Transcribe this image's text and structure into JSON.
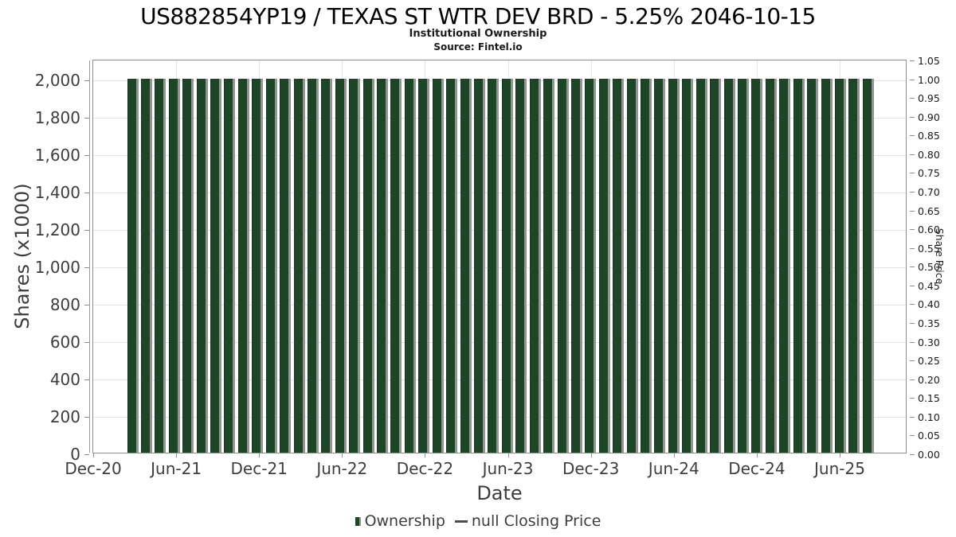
{
  "header": {
    "title": "US882854YP19 / TEXAS ST WTR DEV BRD - 5.25% 2046-10-15",
    "subtitle": "Institutional Ownership",
    "source": "Source: Fintel.io"
  },
  "colors": {
    "bar_fill": "#1d4627",
    "bar_edge": "#949494",
    "grid": "#e4e4e4",
    "axis_line": "#8f8f8f",
    "line_marker": "#4d4d4d"
  },
  "chart_data": {
    "type": "bar",
    "title": "US882854YP19 / TEXAS ST WTR DEV BRD - 5.25% 2046-10-15",
    "subtitle": "Institutional Ownership",
    "source": "Source: Fintel.io",
    "xlabel": "Date",
    "ylabel_left": "Shares (x1000)",
    "ylabel_right": "Share Price",
    "grid": true,
    "legend_position": "bottom",
    "left_axis": {
      "min": 0,
      "max": 2000,
      "tick_step": 200,
      "tick_labels": [
        "0",
        "200",
        "400",
        "600",
        "800",
        "1,000",
        "1,200",
        "1,400",
        "1,600",
        "1,800",
        "2,000"
      ]
    },
    "right_axis": {
      "min": 0.0,
      "max": 1.05,
      "tick_step": 0.05,
      "tick_labels": [
        "0.00",
        "0.05",
        "0.10",
        "0.15",
        "0.20",
        "0.25",
        "0.30",
        "0.35",
        "0.40",
        "0.45",
        "0.50",
        "0.55",
        "0.60",
        "0.65",
        "0.70",
        "0.75",
        "0.80",
        "0.85",
        "0.90",
        "0.95",
        "1.00",
        "1.05"
      ]
    },
    "x_tick_labels": [
      "Dec-20",
      "Jun-21",
      "Dec-21",
      "Jun-22",
      "Dec-22",
      "Jun-23",
      "Dec-23",
      "Jun-24",
      "Dec-24",
      "Jun-25"
    ],
    "categories": [
      "Mar-21",
      "Apr-21",
      "May-21",
      "Jun-21",
      "Jul-21",
      "Aug-21",
      "Sep-21",
      "Oct-21",
      "Nov-21",
      "Dec-21",
      "Jan-22",
      "Feb-22",
      "Mar-22",
      "Apr-22",
      "May-22",
      "Jun-22",
      "Jul-22",
      "Aug-22",
      "Sep-22",
      "Oct-22",
      "Nov-22",
      "Dec-22",
      "Jan-23",
      "Feb-23",
      "Mar-23",
      "Apr-23",
      "May-23",
      "Jun-23",
      "Jul-23",
      "Aug-23",
      "Sep-23",
      "Oct-23",
      "Nov-23",
      "Dec-23",
      "Jan-24",
      "Feb-24",
      "Mar-24",
      "Apr-24",
      "May-24",
      "Jun-24",
      "Jul-24",
      "Aug-24",
      "Sep-24",
      "Oct-24",
      "Nov-24",
      "Dec-24",
      "Jan-25",
      "Feb-25",
      "Mar-25",
      "Apr-25",
      "May-25",
      "Jun-25",
      "Jul-25",
      "Aug-25"
    ],
    "series": [
      {
        "name": "Ownership",
        "type": "bar",
        "axis": "left",
        "values": [
          2000,
          2000,
          2000,
          2000,
          2000,
          2000,
          2000,
          2000,
          2000,
          2000,
          2000,
          2000,
          2000,
          2000,
          2000,
          2000,
          2000,
          2000,
          2000,
          2000,
          2000,
          2000,
          2000,
          2000,
          2000,
          2000,
          2000,
          2000,
          2000,
          2000,
          2000,
          2000,
          2000,
          2000,
          2000,
          2000,
          2000,
          2000,
          2000,
          2000,
          2000,
          2000,
          2000,
          2000,
          2000,
          2000,
          2000,
          2000,
          2000,
          2000,
          2000,
          2000,
          2000,
          2000
        ]
      },
      {
        "name": "null Closing Price",
        "type": "line",
        "axis": "right",
        "values": []
      }
    ]
  },
  "legend": {
    "items": [
      {
        "label": "Ownership",
        "marker": "bar"
      },
      {
        "label": "null Closing Price",
        "marker": "line"
      }
    ]
  }
}
